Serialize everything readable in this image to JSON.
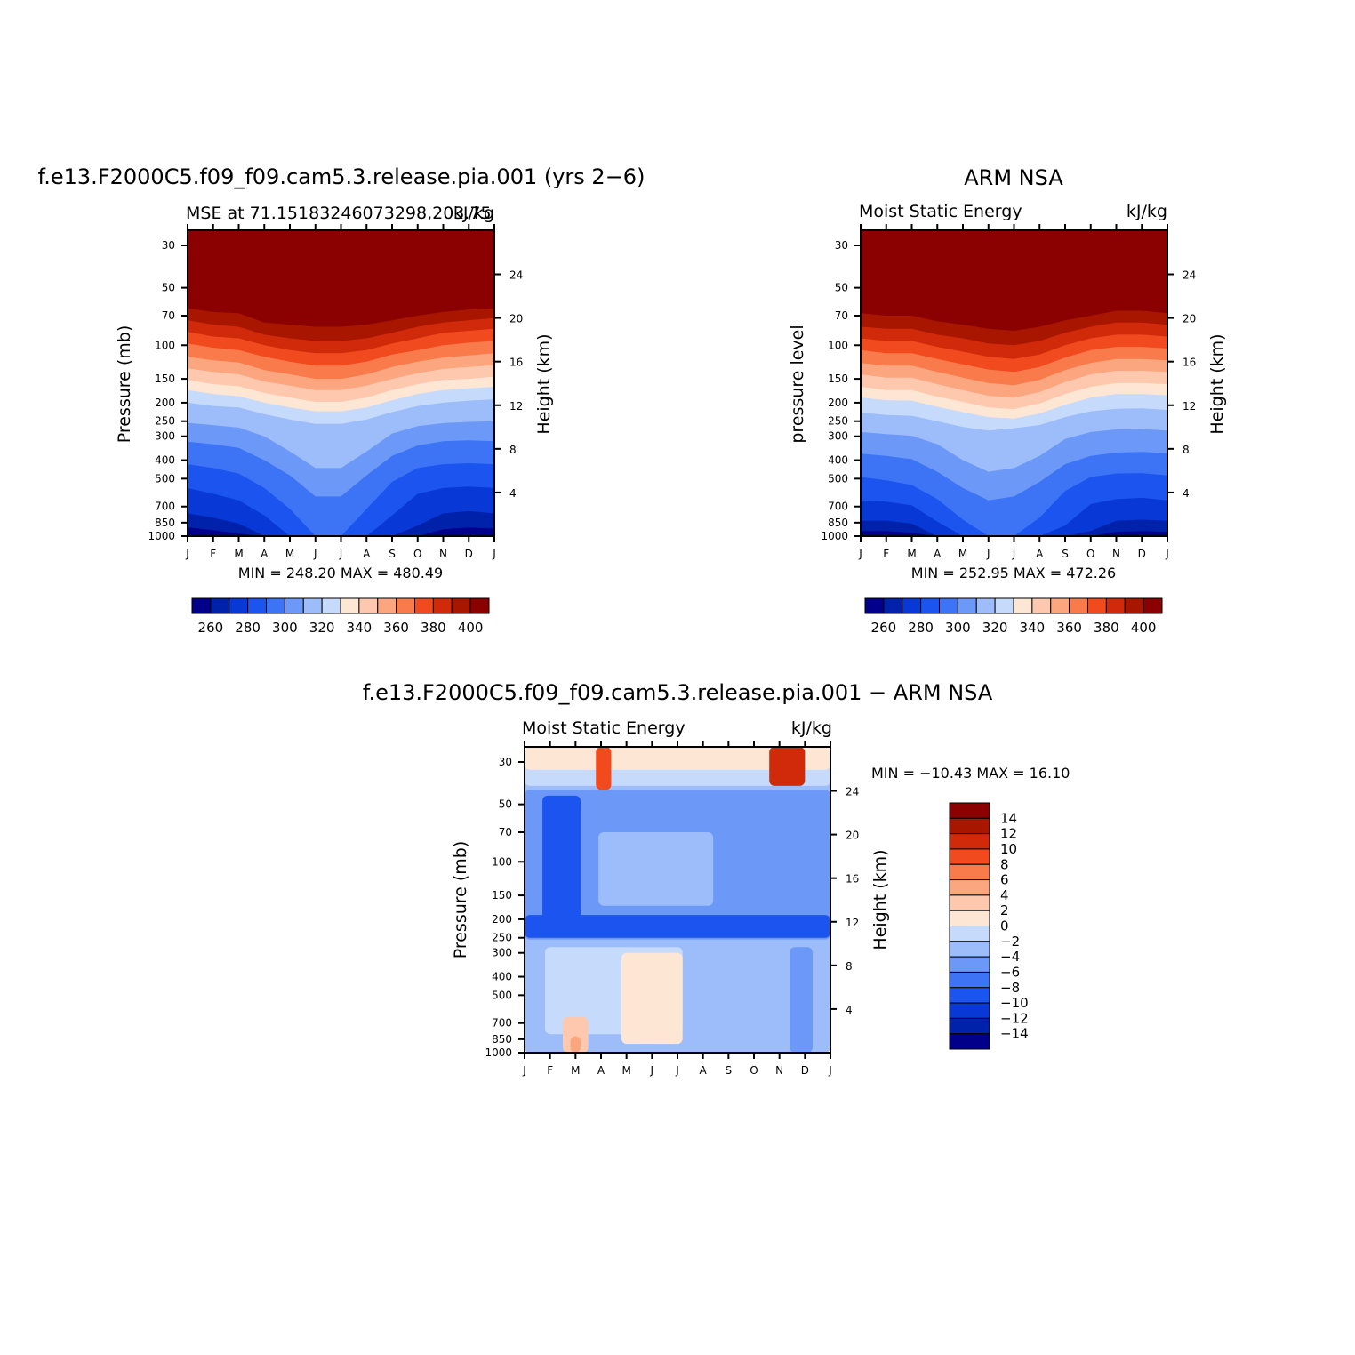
{
  "panels": [
    {
      "id": "model",
      "main_title": "f.e13.F2000C5.f09_f09.cam5.3.release.pia.001 (yrs 2−6)",
      "left_title": "MSE at 71.15183246073298,203.75",
      "right_title": "kJ/kg",
      "y_label": "Pressure (mb)",
      "y2_label": "Height (km)",
      "min_max": "MIN = 248.20 MAX = 480.49",
      "colorbar_labels": [
        "260",
        "280",
        "300",
        "320",
        "340",
        "360",
        "380",
        "400"
      ]
    },
    {
      "id": "obs",
      "main_title": "ARM NSA",
      "left_title": "Moist Static Energy",
      "right_title": "kJ/kg",
      "y_label": "pressure level",
      "y2_label": "Height (km)",
      "min_max": "MIN = 252.95 MAX = 472.26",
      "colorbar_labels": [
        "260",
        "280",
        "300",
        "320",
        "340",
        "360",
        "380",
        "400"
      ]
    },
    {
      "id": "diff",
      "main_title": "f.e13.F2000C5.f09_f09.cam5.3.release.pia.001 − ARM NSA",
      "left_title": "Moist Static Energy",
      "right_title": "kJ/kg",
      "y_label": "Pressure (mb)",
      "y2_label": "Height (km)",
      "min_max": "MIN = −10.43 MAX =  16.10",
      "colorbar_labels": [
        "14",
        "12",
        "10",
        "8",
        "6",
        "4",
        "2",
        "0",
        "−2",
        "−4",
        "−6",
        "−8",
        "−10",
        "−12",
        "−14"
      ]
    }
  ],
  "chart_data": [
    {
      "type": "heatmap",
      "title": "f.e13.F2000C5.f09_f09.cam5.3.release.pia.001 (yrs 2−6)",
      "subtitle": "MSE at 71.15183246073298,203.75",
      "units": "kJ/kg",
      "xlabel": "",
      "ylabel": "Pressure (mb)",
      "y2label": "Height (km)",
      "x_ticks": [
        "J",
        "F",
        "M",
        "A",
        "M",
        "J",
        "J",
        "A",
        "S",
        "O",
        "N",
        "D",
        "J"
      ],
      "y_ticks": [
        30,
        50,
        70,
        100,
        150,
        200,
        250,
        300,
        400,
        500,
        700,
        850,
        1000
      ],
      "y2_ticks": [
        24,
        20,
        16,
        12,
        8,
        4
      ],
      "y_scale": "log",
      "ylim": [
        1000,
        25
      ],
      "levels": [
        260,
        270,
        280,
        290,
        300,
        310,
        320,
        330,
        340,
        350,
        360,
        370,
        380,
        390,
        400
      ],
      "min": 248.2,
      "max": 480.49,
      "boundaries_pressure_mb": {
        "x_months": [
          0,
          1,
          2,
          3,
          4,
          5,
          6,
          7,
          8,
          9,
          10,
          11,
          12
        ],
        "level_400": [
          64,
          67,
          68,
          76,
          78,
          80,
          80,
          78,
          74,
          70,
          67,
          65,
          64
        ],
        "level_390": [
          74,
          78,
          80,
          88,
          92,
          95,
          95,
          92,
          86,
          80,
          76,
          74,
          72
        ],
        "level_380": [
          85,
          90,
          92,
          100,
          106,
          110,
          110,
          106,
          98,
          92,
          86,
          84,
          82
        ],
        "level_370": [
          98,
          103,
          106,
          115,
          122,
          128,
          128,
          122,
          112,
          106,
          100,
          97,
          95
        ],
        "level_360": [
          115,
          120,
          123,
          135,
          142,
          150,
          150,
          142,
          130,
          122,
          116,
          113,
          110
        ],
        "level_350": [
          132,
          138,
          142,
          155,
          163,
          172,
          172,
          163,
          150,
          140,
          133,
          130,
          127
        ],
        "level_340": [
          152,
          160,
          164,
          178,
          188,
          198,
          198,
          188,
          172,
          160,
          152,
          150,
          146
        ],
        "level_330": [
          172,
          180,
          185,
          200,
          212,
          222,
          222,
          212,
          194,
          180,
          172,
          168,
          165
        ],
        "level_320": [
          200,
          208,
          212,
          230,
          245,
          258,
          258,
          245,
          224,
          208,
          200,
          195,
          192
        ],
        "level_310": [
          255,
          262,
          270,
          300,
          360,
          440,
          440,
          360,
          290,
          265,
          256,
          252,
          250
        ],
        "level_300": [
          320,
          330,
          345,
          400,
          480,
          620,
          620,
          480,
          380,
          335,
          318,
          315,
          318
        ],
        "level_290": [
          420,
          440,
          470,
          560,
          720,
          1000,
          1000,
          720,
          520,
          440,
          420,
          415,
          420
        ],
        "level_280": [
          560,
          600,
          650,
          780,
          1000,
          1000,
          1000,
          1000,
          780,
          600,
          560,
          550,
          560
        ],
        "level_270": [
          760,
          800,
          860,
          1000,
          1000,
          1000,
          1000,
          1000,
          1000,
          880,
          760,
          740,
          760
        ],
        "level_260": [
          900,
          930,
          970,
          1000,
          1000,
          1000,
          1000,
          1000,
          1000,
          1000,
          920,
          900,
          910
        ]
      }
    },
    {
      "type": "heatmap",
      "title": "ARM NSA",
      "subtitle": "Moist Static Energy",
      "units": "kJ/kg",
      "xlabel": "",
      "ylabel": "pressure level",
      "y2label": "Height (km)",
      "x_ticks": [
        "J",
        "F",
        "M",
        "A",
        "M",
        "J",
        "J",
        "A",
        "S",
        "O",
        "N",
        "D",
        "J"
      ],
      "y_ticks": [
        30,
        50,
        70,
        100,
        150,
        200,
        250,
        300,
        400,
        500,
        700,
        850,
        1000
      ],
      "y2_ticks": [
        24,
        20,
        16,
        12,
        8,
        4
      ],
      "y_scale": "log",
      "ylim": [
        1000,
        25
      ],
      "levels": [
        260,
        270,
        280,
        290,
        300,
        310,
        320,
        330,
        340,
        350,
        360,
        370,
        380,
        390,
        400
      ],
      "min": 252.95,
      "max": 472.26,
      "boundaries_pressure_mb": {
        "x_months": [
          0,
          1,
          2,
          3,
          4,
          5,
          6,
          7,
          8,
          9,
          10,
          11,
          12
        ],
        "level_400": [
          68,
          70,
          70,
          75,
          78,
          82,
          84,
          80,
          74,
          70,
          66,
          66,
          68
        ],
        "level_390": [
          80,
          82,
          82,
          88,
          92,
          98,
          100,
          95,
          86,
          80,
          76,
          76,
          78
        ],
        "level_380": [
          92,
          95,
          95,
          102,
          108,
          115,
          118,
          112,
          100,
          92,
          88,
          88,
          90
        ],
        "level_370": [
          106,
          110,
          110,
          118,
          126,
          134,
          138,
          130,
          116,
          106,
          102,
          102,
          104
        ],
        "level_360": [
          124,
          128,
          128,
          138,
          148,
          158,
          162,
          152,
          135,
          124,
          118,
          118,
          120
        ],
        "level_350": [
          142,
          148,
          148,
          160,
          172,
          184,
          188,
          176,
          156,
          142,
          136,
          136,
          138
        ],
        "level_340": [
          165,
          172,
          172,
          186,
          198,
          212,
          216,
          202,
          180,
          165,
          158,
          158,
          160
        ],
        "level_330": [
          188,
          194,
          195,
          210,
          224,
          238,
          242,
          228,
          205,
          188,
          180,
          180,
          183
        ],
        "level_320": [
          225,
          232,
          234,
          250,
          268,
          280,
          272,
          262,
          238,
          222,
          215,
          214,
          218
        ],
        "level_310": [
          285,
          292,
          298,
          330,
          400,
          460,
          440,
          380,
          310,
          285,
          276,
          275,
          280
        ],
        "level_300": [
          370,
          380,
          395,
          460,
          560,
          650,
          620,
          520,
          420,
          380,
          365,
          362,
          368
        ],
        "level_290": [
          490,
          510,
          540,
          640,
          820,
          1000,
          1000,
          800,
          580,
          490,
          470,
          468,
          480
        ],
        "level_280": [
          650,
          660,
          690,
          840,
          1000,
          1000,
          1000,
          1000,
          880,
          680,
          640,
          630,
          650
        ],
        "level_270": [
          830,
          830,
          860,
          1000,
          1000,
          1000,
          1000,
          1000,
          1000,
          940,
          830,
          820,
          830
        ],
        "level_260": [
          940,
          940,
          960,
          1000,
          1000,
          1000,
          1000,
          1000,
          1000,
          1000,
          950,
          940,
          950
        ]
      }
    },
    {
      "type": "heatmap",
      "title": "f.e13.F2000C5.f09_f09.cam5.3.release.pia.001 − ARM NSA",
      "subtitle": "Moist Static Energy",
      "units": "kJ/kg",
      "xlabel": "",
      "ylabel": "Pressure (mb)",
      "y2label": "Height (km)",
      "x_ticks": [
        "J",
        "F",
        "M",
        "A",
        "M",
        "J",
        "J",
        "A",
        "S",
        "O",
        "N",
        "D",
        "J"
      ],
      "y_ticks": [
        30,
        50,
        70,
        100,
        150,
        200,
        250,
        300,
        400,
        500,
        700,
        850,
        1000
      ],
      "y2_ticks": [
        24,
        20,
        16,
        12,
        8,
        4
      ],
      "y_scale": "log",
      "ylim": [
        1000,
        25
      ],
      "levels": [
        -14,
        -12,
        -10,
        -8,
        -6,
        -4,
        -2,
        0,
        2,
        4,
        6,
        8,
        10,
        12,
        14
      ],
      "min": -10.43,
      "max": 16.1,
      "regions": [
        {
          "value": -3,
          "x": [
            0,
            12
          ],
          "p": [
            25,
            1000
          ]
        },
        {
          "value": -5,
          "x": [
            0,
            12
          ],
          "p": [
            42,
            255
          ]
        },
        {
          "value": -1,
          "x": [
            0,
            12
          ],
          "p": [
            25,
            40
          ]
        },
        {
          "value": 1,
          "x": [
            0,
            12
          ],
          "p": [
            25,
            33
          ]
        },
        {
          "value": 9,
          "x": [
            2.8,
            3.4
          ],
          "p": [
            25,
            42
          ]
        },
        {
          "value": 11,
          "x": [
            9.6,
            11.0
          ],
          "p": [
            25,
            40
          ]
        },
        {
          "value": -9,
          "x": [
            0.7,
            2.2
          ],
          "p": [
            45,
            230
          ]
        },
        {
          "value": -9,
          "x": [
            0,
            12
          ],
          "p": [
            190,
            250
          ]
        },
        {
          "value": -3,
          "x": [
            2.9,
            7.4
          ],
          "p": [
            70,
            170
          ]
        },
        {
          "value": -1,
          "x": [
            0.8,
            6.2
          ],
          "p": [
            280,
            800
          ]
        },
        {
          "value": 1,
          "x": [
            3.8,
            6.2
          ],
          "p": [
            300,
            900
          ]
        },
        {
          "value": 3,
          "x": [
            1.5,
            2.5
          ],
          "p": [
            650,
            1000
          ]
        },
        {
          "value": 5,
          "x": [
            1.8,
            2.2
          ],
          "p": [
            820,
            1000
          ]
        },
        {
          "value": -5,
          "x": [
            10.4,
            11.3
          ],
          "p": [
            280,
            1000
          ]
        }
      ]
    }
  ]
}
